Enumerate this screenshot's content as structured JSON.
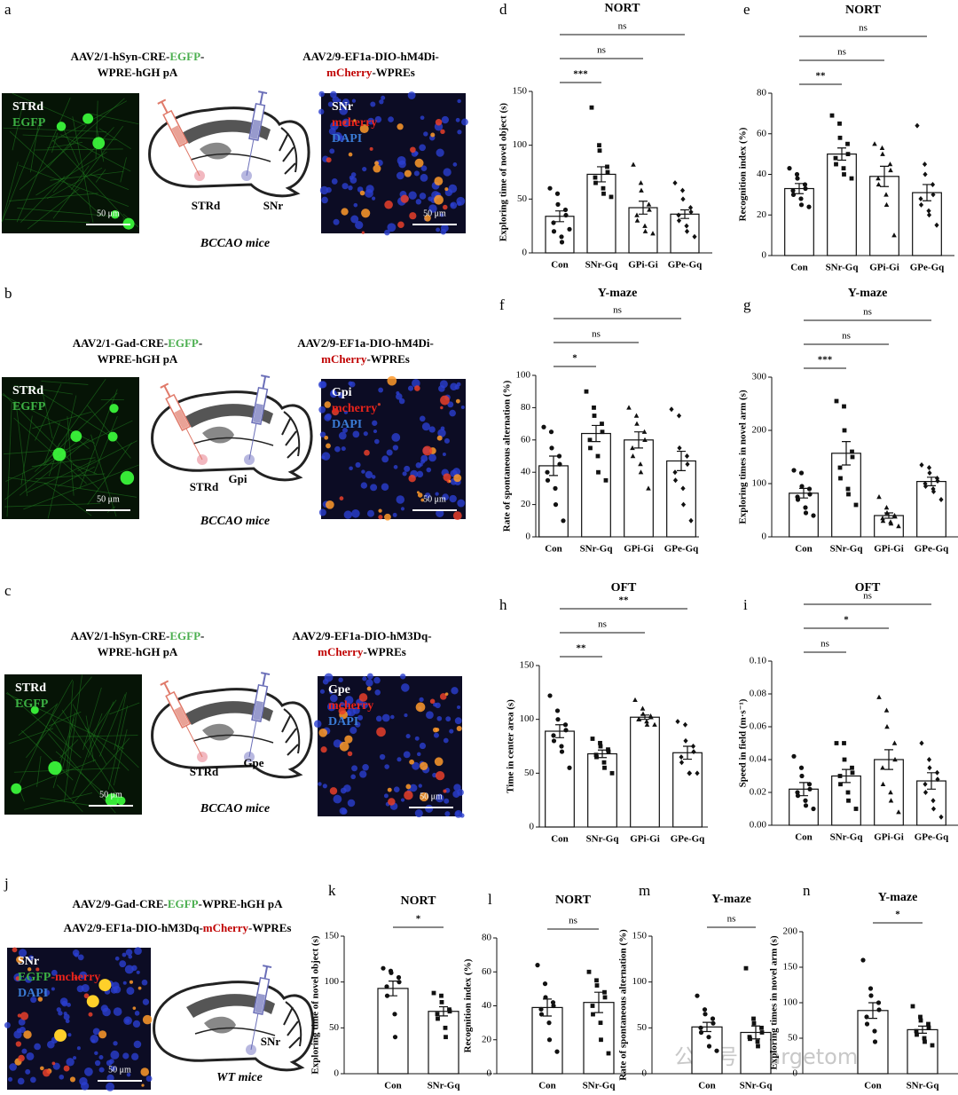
{
  "watermark": "公众号 · Targetome",
  "schematics": [
    {
      "panel": "a",
      "virus_1": [
        [
          {
            "text": "AAV2/1-hSyn-CRE-"
          },
          {
            "text": "EGFP",
            "color": "#4caf50"
          },
          {
            "text": "-"
          }
        ],
        [
          {
            "text": "WPRE-hGH pA"
          }
        ]
      ],
      "virus_2": [
        [
          {
            "text": "AAV2/9-EF1a-DIO-hM4Di-"
          }
        ],
        [
          {
            "text": "mCherry",
            "color": "#c00000"
          },
          {
            "text": "-WPREs"
          }
        ]
      ],
      "image_1": {
        "labels": [
          [
            {
              "text": "STRd",
              "color": "#ffffff"
            }
          ],
          [
            {
              "text": "EGFP",
              "color": "#3cb043"
            }
          ]
        ],
        "scale": "50 μm"
      },
      "brain_labels": [
        "STRd",
        "SNr"
      ],
      "model": "BCCAO mice",
      "image_2": {
        "labels": [
          [
            {
              "text": "SNr",
              "color": "#ffffff"
            }
          ],
          [
            {
              "text": "mcherry",
              "color": "#e8231b"
            }
          ],
          [
            {
              "text": "DAPI",
              "color": "#3a7bd5"
            }
          ]
        ],
        "scale": "50 μm"
      }
    },
    {
      "panel": "b",
      "virus_1": [
        [
          {
            "text": "AAV2/1-Gad-CRE-"
          },
          {
            "text": "EGFP",
            "color": "#4caf50"
          },
          {
            "text": "-"
          }
        ],
        [
          {
            "text": "WPRE-hGH pA"
          }
        ]
      ],
      "virus_2": [
        [
          {
            "text": "AAV2/9-EF1a-DIO-hM4Di-"
          }
        ],
        [
          {
            "text": "mCherry",
            "color": "#c00000"
          },
          {
            "text": "-WPREs"
          }
        ]
      ],
      "image_1": {
        "labels": [
          [
            {
              "text": "STRd",
              "color": "#ffffff"
            }
          ],
          [
            {
              "text": "EGFP",
              "color": "#3cb043"
            }
          ]
        ],
        "scale": "50 μm"
      },
      "brain_labels": [
        "STRd",
        "Gpi"
      ],
      "model": "BCCAO mice",
      "image_2": {
        "labels": [
          [
            {
              "text": "Gpi",
              "color": "#ffffff"
            }
          ],
          [
            {
              "text": "mcherry",
              "color": "#e8231b"
            }
          ],
          [
            {
              "text": "DAPI",
              "color": "#3a7bd5"
            }
          ]
        ],
        "scale": "50 μm"
      }
    },
    {
      "panel": "c",
      "virus_1": [
        [
          {
            "text": "AAV2/1-hSyn-CRE-"
          },
          {
            "text": "EGFP",
            "color": "#4caf50"
          },
          {
            "text": "-"
          }
        ],
        [
          {
            "text": "WPRE-hGH pA"
          }
        ]
      ],
      "virus_2": [
        [
          {
            "text": "AAV2/9-EF1a-DIO-hM3Dq-"
          }
        ],
        [
          {
            "text": "mCherry",
            "color": "#c00000"
          },
          {
            "text": "-WPREs"
          }
        ]
      ],
      "image_1": {
        "labels": [
          [
            {
              "text": "STRd",
              "color": "#ffffff"
            }
          ],
          [
            {
              "text": "EGFP",
              "color": "#3cb043"
            }
          ]
        ],
        "scale": "50 μm"
      },
      "brain_labels": [
        "STRd",
        "Gpe"
      ],
      "model": "BCCAO mice",
      "image_2": {
        "labels": [
          [
            {
              "text": "Gpe",
              "color": "#ffffff"
            }
          ],
          [
            {
              "text": "mcherry",
              "color": "#e8231b"
            }
          ],
          [
            {
              "text": "DAPI",
              "color": "#3a7bd5"
            }
          ]
        ],
        "scale": "50 μm"
      }
    },
    {
      "panel": "j",
      "virus_1": [
        [
          {
            "text": "AAV2/9-Gad-CRE-"
          },
          {
            "text": "EGFP",
            "color": "#4caf50"
          },
          {
            "text": "-WPRE-hGH pA"
          }
        ]
      ],
      "virus_2": [
        [
          {
            "text": "AAV2/9-EF1a-DIO-hM3Dq-"
          },
          {
            "text": "mCherry",
            "color": "#c00000"
          },
          {
            "text": "-WPREs"
          }
        ]
      ],
      "image_1": {
        "labels": [
          [
            {
              "text": "SNr",
              "color": "#ffffff"
            }
          ],
          [
            {
              "text": "EGFP",
              "color": "#3cb043"
            },
            {
              "text": "-mcherry",
              "color": "#e8231b"
            }
          ],
          [
            {
              "text": "DAPI",
              "color": "#3a7bd5"
            }
          ]
        ],
        "scale": "50 μm"
      },
      "brain_labels": [
        "SNr"
      ],
      "model": "WT mice"
    }
  ],
  "chart_data": [
    {
      "type": "bar",
      "panel": "d",
      "title": "NORT",
      "ylabel": "Exploring time of novel object (s)",
      "categories": [
        "Con",
        "SNr-Gq",
        "GPi-Gi",
        "GPe-Gq"
      ],
      "values": [
        34,
        73,
        42,
        36
      ],
      "errors": [
        5,
        7,
        6,
        4
      ],
      "points": [
        [
          60,
          55,
          45,
          40,
          35,
          28,
          20,
          15,
          10,
          22
        ],
        [
          135,
          100,
          95,
          80,
          75,
          70,
          65,
          60,
          55,
          52
        ],
        [
          82,
          65,
          58,
          45,
          40,
          35,
          30,
          25,
          20,
          18
        ],
        [
          65,
          58,
          50,
          42,
          38,
          35,
          30,
          25,
          20,
          15
        ]
      ],
      "ylim": [
        0,
        150
      ],
      "yticks": [
        0,
        50,
        100,
        150
      ],
      "comparisons": [
        {
          "between": [
            "Con",
            "SNr-Gq"
          ],
          "label": "***"
        },
        {
          "between": [
            "Con",
            "GPi-Gi"
          ],
          "label": "ns"
        },
        {
          "between": [
            "Con",
            "GPe-Gq"
          ],
          "label": "ns"
        }
      ]
    },
    {
      "type": "bar",
      "panel": "e",
      "title": "NORT",
      "ylabel": "Recognition index (%)",
      "categories": [
        "Con",
        "SNr-Gq",
        "GPi-Gi",
        "GPe-Gq"
      ],
      "values": [
        33,
        50,
        39,
        31
      ],
      "errors": [
        2.5,
        3,
        5,
        4
      ],
      "points": [
        [
          43,
          40,
          38,
          35,
          33,
          32,
          30,
          28,
          25,
          24
        ],
        [
          69,
          65,
          58,
          55,
          50,
          48,
          45,
          43,
          40,
          38
        ],
        [
          55,
          53,
          50,
          45,
          42,
          38,
          35,
          30,
          25,
          10
        ],
        [
          64,
          45,
          40,
          35,
          30,
          28,
          25,
          22,
          20,
          15
        ]
      ],
      "ylim": [
        0,
        80
      ],
      "yticks": [
        0,
        20,
        40,
        60,
        80
      ],
      "comparisons": [
        {
          "between": [
            "Con",
            "SNr-Gq"
          ],
          "label": "**"
        },
        {
          "between": [
            "Con",
            "GPi-Gi"
          ],
          "label": "ns"
        },
        {
          "between": [
            "Con",
            "GPe-Gq"
          ],
          "label": "ns"
        }
      ]
    },
    {
      "type": "bar",
      "panel": "f",
      "title": "Y-maze",
      "ylabel": "Rate of spontaneous alternation (%)",
      "categories": [
        "Con",
        "SNr-Gq",
        "GPi-Gi",
        "GPe-Gq"
      ],
      "values": [
        44,
        64,
        60,
        47
      ],
      "errors": [
        6,
        5,
        5,
        6
      ],
      "points": [
        [
          68,
          65,
          55,
          50,
          45,
          40,
          35,
          30,
          20,
          10
        ],
        [
          90,
          80,
          75,
          70,
          65,
          60,
          55,
          50,
          40,
          35
        ],
        [
          80,
          75,
          70,
          65,
          60,
          55,
          50,
          45,
          40,
          30
        ],
        [
          79,
          75,
          55,
          50,
          45,
          40,
          35,
          30,
          20,
          10
        ]
      ],
      "ylim": [
        0,
        100
      ],
      "yticks": [
        0,
        20,
        40,
        60,
        80,
        100
      ],
      "comparisons": [
        {
          "between": [
            "Con",
            "SNr-Gq"
          ],
          "label": "*"
        },
        {
          "between": [
            "Con",
            "GPi-Gi"
          ],
          "label": "ns"
        },
        {
          "between": [
            "Con",
            "GPe-Gq"
          ],
          "label": "ns"
        }
      ]
    },
    {
      "type": "bar",
      "panel": "g",
      "title": "Y-maze",
      "ylabel": "Exploring times in novel arm (s)",
      "categories": [
        "Con",
        "SNr-Gq",
        "GPi-Gi",
        "GPe-Gq"
      ],
      "values": [
        82,
        157,
        40,
        104
      ],
      "errors": [
        9,
        22,
        5,
        8
      ],
      "points": [
        [
          125,
          120,
          95,
          90,
          80,
          75,
          70,
          55,
          45,
          40
        ],
        [
          255,
          245,
          200,
          160,
          150,
          130,
          110,
          90,
          80,
          60
        ],
        [
          75,
          55,
          45,
          40,
          38,
          35,
          30,
          28,
          25,
          20
        ],
        [
          135,
          130,
          120,
          110,
          105,
          100,
          95,
          90,
          85,
          70
        ]
      ],
      "ylim": [
        0,
        300
      ],
      "yticks": [
        0,
        100,
        200,
        300
      ],
      "comparisons": [
        {
          "between": [
            "Con",
            "SNr-Gq"
          ],
          "label": "***"
        },
        {
          "between": [
            "Con",
            "GPi-Gi"
          ],
          "label": "ns"
        },
        {
          "between": [
            "Con",
            "GPe-Gq"
          ],
          "label": "ns"
        }
      ]
    },
    {
      "type": "bar",
      "panel": "h",
      "title": "OFT",
      "ylabel": "Time in center area (s)",
      "categories": [
        "Con",
        "SNr-Gq",
        "GPi-Gi",
        "GPe-Gq"
      ],
      "values": [
        89,
        68,
        102,
        69
      ],
      "errors": [
        6,
        3.5,
        2,
        6
      ],
      "points": [
        [
          122,
          108,
          100,
          95,
          90,
          85,
          80,
          75,
          70,
          55
        ],
        [
          82,
          78,
          75,
          72,
          70,
          67,
          65,
          60,
          55,
          50
        ],
        [
          118,
          110,
          105,
          103,
          102,
          100,
          100,
          98,
          95,
          95
        ],
        [
          98,
          95,
          80,
          75,
          70,
          65,
          60,
          50,
          50,
          50
        ]
      ],
      "ylim": [
        0,
        150
      ],
      "yticks": [
        0,
        50,
        100,
        150
      ],
      "comparisons": [
        {
          "between": [
            "Con",
            "SNr-Gq"
          ],
          "label": "**"
        },
        {
          "between": [
            "Con",
            "GPi-Gi"
          ],
          "label": "ns"
        },
        {
          "between": [
            "Con",
            "GPe-Gq"
          ],
          "label": "**"
        }
      ]
    },
    {
      "type": "bar",
      "panel": "i",
      "title": "OFT",
      "ylabel": "Speed in field (m·s⁻¹)",
      "categories": [
        "Con",
        "SNr-Gq",
        "GPi-Gi",
        "GPe-Gq"
      ],
      "values": [
        0.022,
        0.03,
        0.04,
        0.027
      ],
      "errors": [
        0.004,
        0.004,
        0.006,
        0.005
      ],
      "points": [
        [
          0.042,
          0.035,
          0.03,
          0.025,
          0.022,
          0.02,
          0.018,
          0.015,
          0.012,
          0.01
        ],
        [
          0.05,
          0.05,
          0.04,
          0.035,
          0.032,
          0.03,
          0.025,
          0.02,
          0.015,
          0.01
        ],
        [
          0.078,
          0.07,
          0.06,
          0.05,
          0.04,
          0.035,
          0.025,
          0.02,
          0.015,
          0.008
        ],
        [
          0.05,
          0.04,
          0.035,
          0.032,
          0.028,
          0.025,
          0.02,
          0.015,
          0.01,
          0.005
        ]
      ],
      "ylim": [
        0,
        0.1
      ],
      "yticks": [
        {
          "value": 0,
          "label": "0.00"
        },
        {
          "value": 0.02,
          "label": "0.02"
        },
        {
          "value": 0.04,
          "label": "0.04"
        },
        {
          "value": 0.06,
          "label": "0.06"
        },
        {
          "value": 0.08,
          "label": "0.08"
        },
        {
          "value": 0.1,
          "label": "0.10"
        }
      ],
      "comparisons": [
        {
          "between": [
            "Con",
            "SNr-Gq"
          ],
          "label": "ns"
        },
        {
          "between": [
            "Con",
            "GPi-Gi"
          ],
          "label": "*"
        },
        {
          "between": [
            "Con",
            "GPe-Gq"
          ],
          "label": "ns"
        }
      ]
    },
    {
      "type": "bar",
      "panel": "k",
      "title": "NORT",
      "ylabel": "Exploring time of novel object (s)",
      "categories": [
        "Con",
        "SNr-Gq"
      ],
      "values": [
        93,
        68
      ],
      "errors": [
        8,
        5
      ],
      "points": [
        [
          115,
          112,
          110,
          105,
          100,
          95,
          85,
          65,
          40
        ],
        [
          88,
          85,
          78,
          70,
          68,
          65,
          60,
          50,
          40
        ]
      ],
      "ylim": [
        0,
        150
      ],
      "yticks": [
        0,
        50,
        100,
        150
      ],
      "comparisons": [
        {
          "between": [
            "Con",
            "SNr-Gq"
          ],
          "label": "*"
        }
      ]
    },
    {
      "type": "bar",
      "panel": "l",
      "title": "NORT",
      "ylabel": "Recognition index (%)",
      "categories": [
        "Con",
        "SNr-Gq"
      ],
      "values": [
        39,
        42
      ],
      "errors": [
        5,
        6
      ],
      "points": [
        [
          64,
          53,
          45,
          42,
          40,
          38,
          35,
          30,
          20,
          13
        ],
        [
          60,
          55,
          52,
          48,
          45,
          40,
          35,
          30,
          20,
          12
        ]
      ],
      "ylim": [
        0,
        80
      ],
      "yticks": [
        0,
        20,
        40,
        60,
        80
      ],
      "comparisons": [
        {
          "between": [
            "Con",
            "SNr-Gq"
          ],
          "label": "ns"
        }
      ]
    },
    {
      "type": "bar",
      "panel": "m",
      "title": "Y-maze",
      "ylabel": "Rate of spontaneous alternation (%)",
      "categories": [
        "Con",
        "SNr-Gq"
      ],
      "values": [
        51,
        45
      ],
      "errors": [
        5,
        7
      ],
      "points": [
        [
          85,
          70,
          65,
          60,
          55,
          50,
          45,
          40,
          30,
          25
        ],
        [
          115,
          60,
          55,
          50,
          45,
          40,
          38,
          35,
          30
        ]
      ],
      "ylim": [
        0,
        150
      ],
      "yticks": [
        0,
        50,
        100,
        150
      ],
      "comparisons": [
        {
          "between": [
            "Con",
            "SNr-Gq"
          ],
          "label": "ns"
        }
      ]
    },
    {
      "type": "bar",
      "panel": "n",
      "title": "Y-maze",
      "ylabel": "Exploring times in novel arm (s)",
      "categories": [
        "Con",
        "SNr-Gq"
      ],
      "values": [
        89,
        62
      ],
      "errors": [
        11,
        5
      ],
      "points": [
        [
          160,
          120,
          110,
          100,
          90,
          80,
          70,
          60,
          45
        ],
        [
          95,
          80,
          75,
          70,
          65,
          60,
          55,
          50,
          45,
          40
        ]
      ],
      "ylim": [
        0,
        200
      ],
      "yticks": [
        0,
        50,
        100,
        150,
        200
      ],
      "comparisons": [
        {
          "between": [
            "Con",
            "SNr-Gq"
          ],
          "label": "*"
        }
      ]
    }
  ]
}
